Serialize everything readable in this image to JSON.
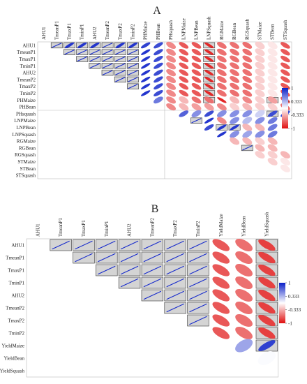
{
  "chart_data": [
    {
      "type": "heatmap",
      "title": "A",
      "variables": [
        "AHU1",
        "TmeanP1",
        "TmaxP1",
        "TminP1",
        "AHU2",
        "TmeanP2",
        "TmaxP2",
        "TminP2",
        "PHMaize",
        "PHBean",
        "PHsquash",
        "LNPMaize",
        "LNPBean",
        "LNPSquash",
        "RGMaize",
        "RGBean",
        "RGSquash",
        "STMaize",
        "STBean",
        "STSquash"
      ],
      "rows": [
        {
          "values": [
            0.95,
            0.9,
            0.9,
            0.9,
            0.95,
            0.9,
            0.9,
            0.85,
            0.8,
            -0.5,
            -0.7,
            -0.7,
            -0.9,
            -0.6,
            -0.6,
            -0.6,
            -0.2,
            -0.1,
            -0.7
          ],
          "boxed": [
            0,
            1,
            2,
            3,
            4,
            5,
            6,
            12
          ]
        },
        {
          "values": [
            0.95,
            0.95,
            0.95,
            0.95,
            0.95,
            0.95,
            0.9,
            0.8,
            -0.5,
            -0.7,
            -0.7,
            -0.9,
            -0.6,
            -0.6,
            -0.6,
            -0.2,
            -0.1,
            -0.7
          ],
          "boxed": [
            0,
            1,
            2,
            3,
            4,
            5,
            11
          ]
        },
        {
          "values": [
            0.95,
            0.95,
            0.95,
            0.95,
            0.95,
            0.9,
            0.8,
            -0.5,
            -0.7,
            -0.7,
            -0.9,
            -0.6,
            -0.6,
            -0.6,
            -0.2,
            -0.1,
            -0.7
          ],
          "boxed": [
            0,
            1,
            2,
            3,
            4,
            10
          ]
        },
        {
          "values": [
            0.95,
            0.95,
            0.95,
            0.95,
            0.9,
            0.8,
            -0.5,
            -0.7,
            -0.7,
            -0.9,
            -0.6,
            -0.6,
            -0.6,
            -0.2,
            -0.1,
            -0.7
          ],
          "boxed": [
            0,
            1,
            2,
            3,
            9
          ]
        },
        {
          "values": [
            0.95,
            0.95,
            0.95,
            0.9,
            0.8,
            -0.5,
            -0.7,
            -0.7,
            -0.9,
            -0.6,
            -0.6,
            -0.6,
            -0.2,
            -0.1,
            -0.7
          ],
          "boxed": [
            0,
            1,
            2,
            8
          ]
        },
        {
          "values": [
            0.95,
            0.95,
            0.9,
            0.8,
            -0.5,
            -0.7,
            -0.7,
            -0.9,
            -0.6,
            -0.6,
            -0.6,
            -0.2,
            -0.1,
            -0.7
          ],
          "boxed": [
            0,
            1,
            7
          ]
        },
        {
          "values": [
            0.95,
            0.9,
            0.8,
            -0.5,
            -0.7,
            -0.7,
            -0.9,
            -0.6,
            -0.6,
            -0.6,
            -0.2,
            -0.1,
            -0.7
          ],
          "boxed": [
            0,
            6
          ]
        },
        {
          "values": [
            0.9,
            0.8,
            -0.5,
            -0.7,
            -0.7,
            -0.9,
            -0.6,
            -0.6,
            -0.6,
            -0.2,
            -0.1,
            -0.7
          ],
          "boxed": [
            5
          ]
        },
        {
          "values": [
            0.6,
            -0.5,
            -0.3,
            -0.6,
            -0.6,
            -0.9,
            -0.3,
            -0.5,
            -0.2,
            -0.4,
            -0.7
          ],
          "boxed": [
            4,
            9
          ]
        },
        {
          "values": [
            -0.5,
            -0.3,
            -0.4,
            -0.4,
            -0.5,
            -0.2,
            -0.3,
            -0.2,
            -0.2,
            -0.6
          ],
          "boxed": []
        },
        {
          "values": [
            0.7,
            0.5,
            0.8,
            0.5,
            0.5,
            0.5,
            0.2,
            0.8,
            0.8
          ],
          "boxed": [
            7
          ]
        },
        {
          "values": [
            0.95,
            0.9,
            -0.5,
            0.5,
            0.3,
            0.5,
            0.6
          ],
          "boxed": [
            0
          ]
        },
        {
          "values": [
            0.8,
            0.9,
            0.9,
            -0.3,
            -0.3,
            0.6
          ],
          "boxed": [
            1,
            2
          ]
        },
        {
          "values": [
            0.9,
            0.5,
            0.4,
            0.5,
            0.6
          ],
          "boxed": []
        },
        {
          "values": [
            -0.3,
            -0.3,
            -0.2,
            -0.3
          ],
          "boxed": []
        },
        {
          "values": [
            0.95,
            -0.3,
            -0.3
          ],
          "boxed": [
            0
          ]
        },
        {
          "values": [
            -0.2,
            -0.2,
            -0.3
          ],
          "boxed": []
        },
        {
          "values": [
            -0.2,
            -0.1
          ],
          "boxed": []
        },
        {
          "values": [
            -0.1
          ],
          "boxed": []
        },
        {
          "values": [],
          "boxed": []
        }
      ],
      "colorbar": {
        "ticks": [
          "1",
          "0.333",
          "-0.333",
          "-1"
        ],
        "range": [
          -1,
          1
        ]
      }
    },
    {
      "type": "heatmap",
      "title": "B",
      "column_variables": [
        "AHU1",
        "TmeanP1",
        "TmaxP1",
        "TminP1",
        "AHU2",
        "TmeanP2",
        "TmaxP2",
        "TminP2",
        "YieldMaize",
        "YieldBean",
        "YieldSquash"
      ],
      "row_variables": [
        "AHU1",
        "TmeanP1",
        "TmaxP1",
        "TminP1",
        "AHU2",
        "TmeanP2",
        "TmaxP2",
        "TminP2",
        "YieldMaize",
        "YieldBean",
        "YieldSquash"
      ],
      "rows": [
        {
          "values": [
            0.95,
            0.95,
            0.95,
            0.95,
            0.95,
            0.95,
            0.95,
            -0.7,
            -0.6,
            -0.8
          ],
          "boxed": [
            0,
            1,
            2,
            3,
            4,
            5,
            6,
            9
          ]
        },
        {
          "values": [
            0.95,
            0.95,
            0.95,
            0.95,
            0.95,
            0.95,
            -0.7,
            -0.6,
            -0.8
          ],
          "boxed": [
            0,
            1,
            2,
            3,
            4,
            5,
            8
          ]
        },
        {
          "values": [
            0.95,
            0.95,
            0.95,
            0.95,
            0.95,
            -0.7,
            -0.6,
            -0.8
          ],
          "boxed": [
            0,
            1,
            2,
            3,
            4,
            7
          ]
        },
        {
          "values": [
            0.95,
            0.95,
            0.95,
            0.95,
            -0.7,
            -0.6,
            -0.8
          ],
          "boxed": [
            0,
            1,
            2,
            3,
            6
          ]
        },
        {
          "values": [
            0.95,
            0.95,
            0.95,
            -0.7,
            -0.6,
            -0.8
          ],
          "boxed": [
            0,
            1,
            2,
            5
          ]
        },
        {
          "values": [
            0.95,
            0.95,
            -0.7,
            -0.6,
            -0.8
          ],
          "boxed": [
            0,
            1,
            4
          ]
        },
        {
          "values": [
            0.95,
            -0.7,
            -0.6,
            -0.8
          ],
          "boxed": [
            0,
            3
          ]
        },
        {
          "values": [
            -0.7,
            -0.6,
            -0.8
          ],
          "boxed": [
            2
          ]
        },
        {
          "values": [
            0.4,
            0.85
          ],
          "boxed": [
            1
          ]
        },
        {
          "values": [
            0.02
          ],
          "boxed": []
        },
        {
          "values": [],
          "boxed": []
        }
      ],
      "colorbar": {
        "ticks": [
          "1",
          "0.333",
          "-0.333",
          "-1"
        ],
        "range": [
          -1,
          1
        ]
      }
    }
  ]
}
